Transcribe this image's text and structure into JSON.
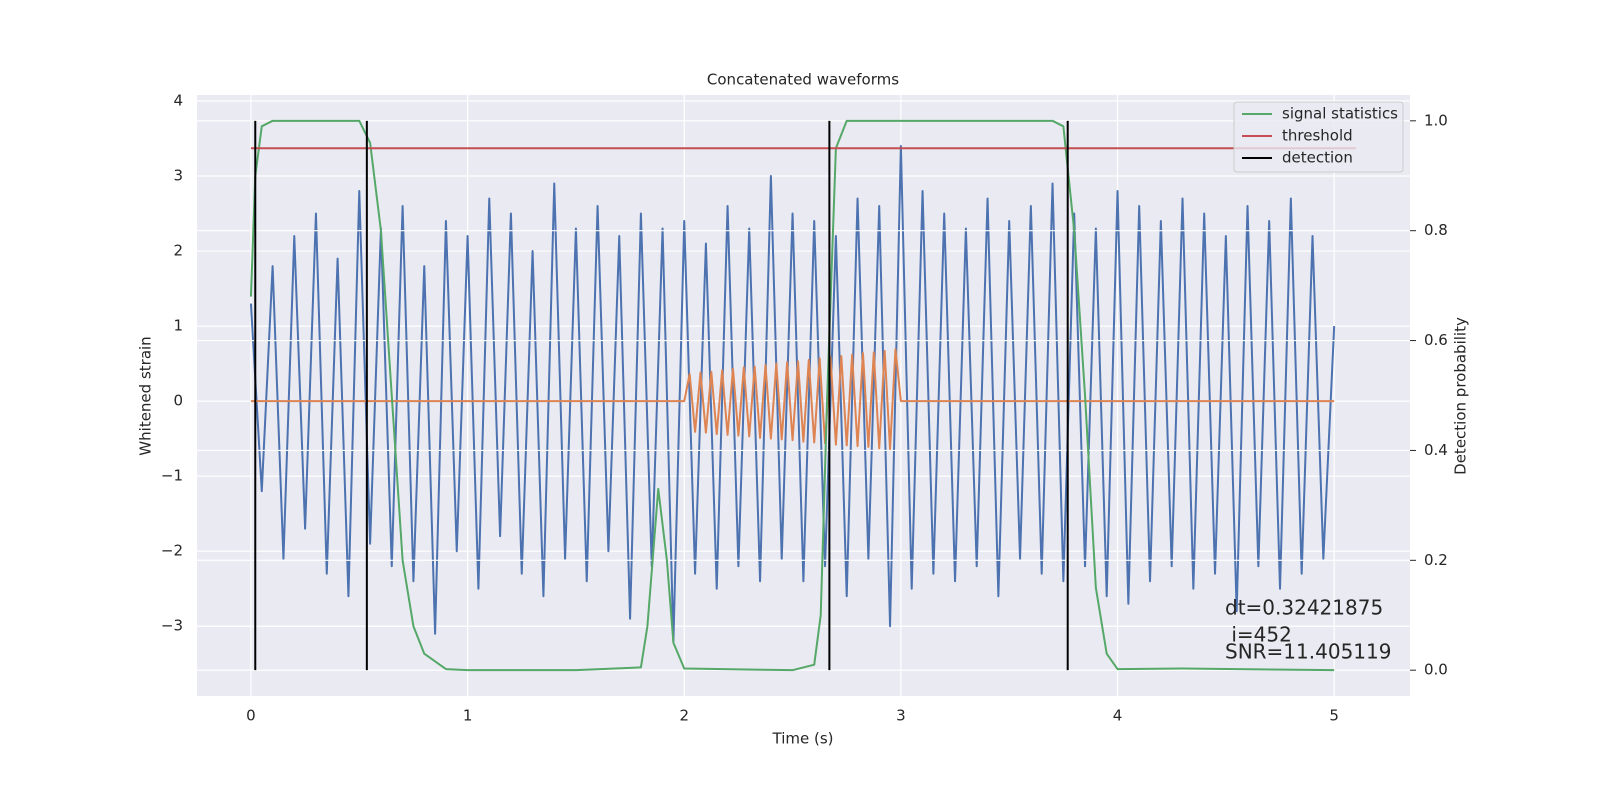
{
  "chart_data": {
    "type": "line",
    "title": "Concatenated waveforms",
    "xlabel": "Time (s)",
    "ylabel": "Whitened strain",
    "y2label": "Detection probability",
    "xlim": [
      -0.249,
      5.35
    ],
    "ylim": [
      -3.93,
      4.08
    ],
    "y2lim": [
      -0.047,
      1.047
    ],
    "xticks": [
      0,
      1,
      2,
      3,
      4,
      5
    ],
    "yticks": [
      {
        "value": -3,
        "label": "−3"
      },
      {
        "value": -2,
        "label": "−2"
      },
      {
        "value": -1,
        "label": "−1"
      },
      0,
      1,
      2,
      3,
      4
    ],
    "y2ticks": [
      {
        "value": 0,
        "label": "0.0"
      },
      {
        "value": 0.2,
        "label": "0.2"
      },
      {
        "value": 0.4,
        "label": "0.4"
      },
      {
        "value": 0.6,
        "label": "0.6"
      },
      {
        "value": 0.8,
        "label": "0.8"
      },
      {
        "value": 1,
        "label": "1.0"
      }
    ],
    "grid": true,
    "legend": "upper right",
    "series": [
      {
        "color": "#4c72b0",
        "axis": "y",
        "x": [
          0,
          0.05,
          0.1,
          0.15,
          0.2,
          0.25,
          0.3,
          0.35,
          0.4,
          0.45,
          0.5,
          0.55,
          0.6,
          0.65,
          0.7,
          0.75,
          0.8,
          0.85,
          0.9,
          0.95,
          1,
          1.05,
          1.1,
          1.15,
          1.2,
          1.25,
          1.3,
          1.35,
          1.4,
          1.45,
          1.5,
          1.55,
          1.6,
          1.65,
          1.7,
          1.75,
          1.8,
          1.85,
          1.9,
          1.95,
          2,
          2.05,
          2.1,
          2.15,
          2.2,
          2.25,
          2.3,
          2.35,
          2.4,
          2.45,
          2.5,
          2.55,
          2.6,
          2.65,
          2.7,
          2.75,
          2.8,
          2.85,
          2.9,
          2.95,
          3,
          3.05,
          3.1,
          3.15,
          3.2,
          3.25,
          3.3,
          3.35,
          3.4,
          3.45,
          3.5,
          3.55,
          3.6,
          3.65,
          3.7,
          3.75,
          3.8,
          3.85,
          3.9,
          3.95,
          4,
          4.05,
          4.1,
          4.15,
          4.2,
          4.25,
          4.3,
          4.35,
          4.4,
          4.45,
          4.5,
          4.55,
          4.6,
          4.65,
          4.7,
          4.75,
          4.8,
          4.85,
          4.9,
          4.95,
          5
        ],
        "values": [
          1.3,
          -1.2,
          1.8,
          -2.1,
          2.2,
          -1.7,
          2.5,
          -2.3,
          1.9,
          -2.6,
          2.8,
          -1.9,
          2.3,
          -2.2,
          2.6,
          -2.4,
          1.8,
          -3.1,
          2.4,
          -2.0,
          2.2,
          -2.5,
          2.7,
          -1.8,
          2.5,
          -2.3,
          2.0,
          -2.6,
          2.9,
          -2.1,
          2.3,
          -2.4,
          2.6,
          -2.0,
          2.2,
          -2.9,
          2.5,
          -2.2,
          2.3,
          -3.2,
          2.4,
          -2.3,
          2.1,
          -2.5,
          2.6,
          -2.2,
          2.3,
          -2.4,
          3.0,
          -2.1,
          2.5,
          -2.4,
          2.4,
          -2.2,
          2.2,
          -2.6,
          2.7,
          -2.1,
          2.6,
          -3.0,
          3.4,
          -2.5,
          2.8,
          -2.3,
          2.5,
          -2.4,
          2.3,
          -2.2,
          2.7,
          -2.6,
          2.4,
          -2.1,
          2.6,
          -2.3,
          2.9,
          -2.4,
          2.5,
          -2.2,
          2.3,
          -2.6,
          2.8,
          -2.7,
          2.6,
          -2.4,
          2.4,
          -2.2,
          2.7,
          -2.5,
          2.5,
          -2.3,
          2.2,
          -2.8,
          2.6,
          -2.2,
          2.4,
          -2.5,
          2.7,
          -2.3,
          2.2,
          -2.1,
          1.0
        ]
      },
      {
        "color": "#dd8452",
        "axis": "y",
        "x": [
          0,
          2,
          2.025,
          2.05,
          2.075,
          2.1,
          2.125,
          2.15,
          2.175,
          2.2,
          2.225,
          2.25,
          2.275,
          2.3,
          2.325,
          2.35,
          2.375,
          2.4,
          2.425,
          2.45,
          2.475,
          2.5,
          2.525,
          2.55,
          2.575,
          2.6,
          2.625,
          2.65,
          2.675,
          2.7,
          2.725,
          2.75,
          2.775,
          2.8,
          2.825,
          2.85,
          2.875,
          2.9,
          2.925,
          2.95,
          2.975,
          3,
          5
        ],
        "values": [
          0,
          0,
          0.36,
          -0.41,
          0.38,
          -0.42,
          0.39,
          -0.44,
          0.41,
          -0.45,
          0.43,
          -0.46,
          0.45,
          -0.47,
          0.46,
          -0.49,
          0.48,
          -0.5,
          0.5,
          -0.51,
          0.52,
          -0.52,
          0.53,
          -0.54,
          0.55,
          -0.55,
          0.57,
          -0.56,
          0.59,
          -0.58,
          0.6,
          -0.59,
          0.62,
          -0.6,
          0.64,
          -0.61,
          0.65,
          -0.63,
          0.67,
          -0.64,
          0.69,
          0,
          0
        ]
      },
      {
        "name": "signal statistics",
        "color": "#55a868",
        "axis": "y2",
        "x": [
          0,
          0.02,
          0.05,
          0.1,
          0.5,
          0.55,
          0.6,
          0.65,
          0.7,
          0.75,
          0.8,
          0.9,
          1,
          1.5,
          1.8,
          1.83,
          1.88,
          1.92,
          1.95,
          2,
          2.5,
          2.6,
          2.63,
          2.66,
          2.7,
          2.75,
          3.7,
          3.75,
          3.8,
          3.85,
          3.9,
          3.95,
          4,
          4.3,
          5
        ],
        "values": [
          0.68,
          0.9,
          0.99,
          1,
          1,
          0.96,
          0.8,
          0.5,
          0.2,
          0.08,
          0.03,
          0.002,
          0,
          0,
          0.005,
          0.08,
          0.33,
          0.2,
          0.05,
          0.003,
          0,
          0.01,
          0.1,
          0.5,
          0.95,
          1,
          1,
          0.99,
          0.8,
          0.5,
          0.15,
          0.03,
          0.002,
          0.003,
          0
        ]
      },
      {
        "name": "threshold",
        "color": "#c44e52",
        "axis": "y2",
        "x": [
          0,
          5.1
        ],
        "values": [
          0.95,
          0.95
        ]
      },
      {
        "name": "detection",
        "color": "#000000",
        "axis": "y2",
        "x": [
          0.02,
          0.535,
          2.67,
          3.77
        ],
        "span": [
          0,
          1
        ]
      }
    ],
    "annotations": [
      "dt=0.32421875",
      " i=452",
      "SNR=11.405119"
    ]
  }
}
